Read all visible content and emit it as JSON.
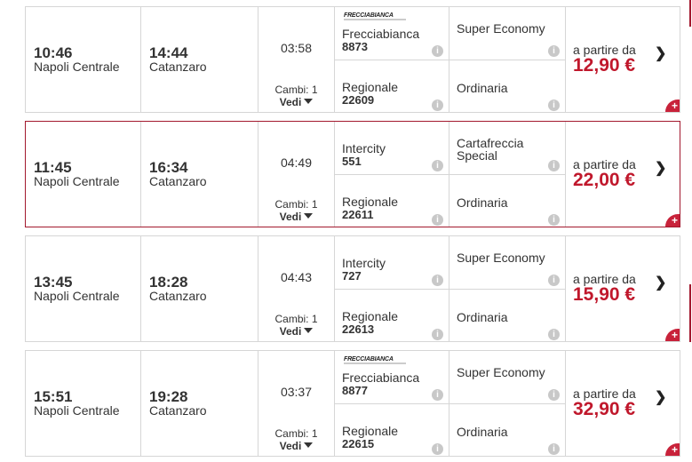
{
  "from_label": "a partire da",
  "changes_label": "Cambi: 1",
  "details_label": "Vedi",
  "colors": {
    "price": "#c0182c",
    "selected_border": "#a3192e"
  },
  "solutions": [
    {
      "dep_time": "10:46",
      "dep_station": "Napoli Centrale",
      "arr_time": "14:44",
      "arr_station": "Catanzaro",
      "duration": "03:58",
      "legs": [
        {
          "logo": "FRECCIABIANCA",
          "name": "Frecciabianca",
          "number": "8873",
          "fare": "Super Economy"
        },
        {
          "name": "Regionale",
          "number": "22609",
          "fare": "Ordinaria"
        }
      ],
      "price": "12,90 €"
    },
    {
      "dep_time": "11:45",
      "dep_station": "Napoli Centrale",
      "arr_time": "16:34",
      "arr_station": "Catanzaro",
      "duration": "04:49",
      "legs": [
        {
          "name": "Intercity",
          "number": "551",
          "fare": "Cartafreccia Special"
        },
        {
          "name": "Regionale",
          "number": "22611",
          "fare": "Ordinaria"
        }
      ],
      "price": "22,00 €",
      "selected": true
    },
    {
      "dep_time": "13:45",
      "dep_station": "Napoli Centrale",
      "arr_time": "18:28",
      "arr_station": "Catanzaro",
      "duration": "04:43",
      "legs": [
        {
          "name": "Intercity",
          "number": "727",
          "fare": "Super Economy"
        },
        {
          "name": "Regionale",
          "number": "22613",
          "fare": "Ordinaria"
        }
      ],
      "price": "15,90 €"
    },
    {
      "dep_time": "15:51",
      "dep_station": "Napoli Centrale",
      "arr_time": "19:28",
      "arr_station": "Catanzaro",
      "duration": "03:37",
      "legs": [
        {
          "logo": "FRECCIABIANCA",
          "name": "Frecciabianca",
          "number": "8877",
          "fare": "Super Economy"
        },
        {
          "name": "Regionale",
          "number": "22615",
          "fare": "Ordinaria"
        }
      ],
      "price": "32,90 €"
    }
  ]
}
